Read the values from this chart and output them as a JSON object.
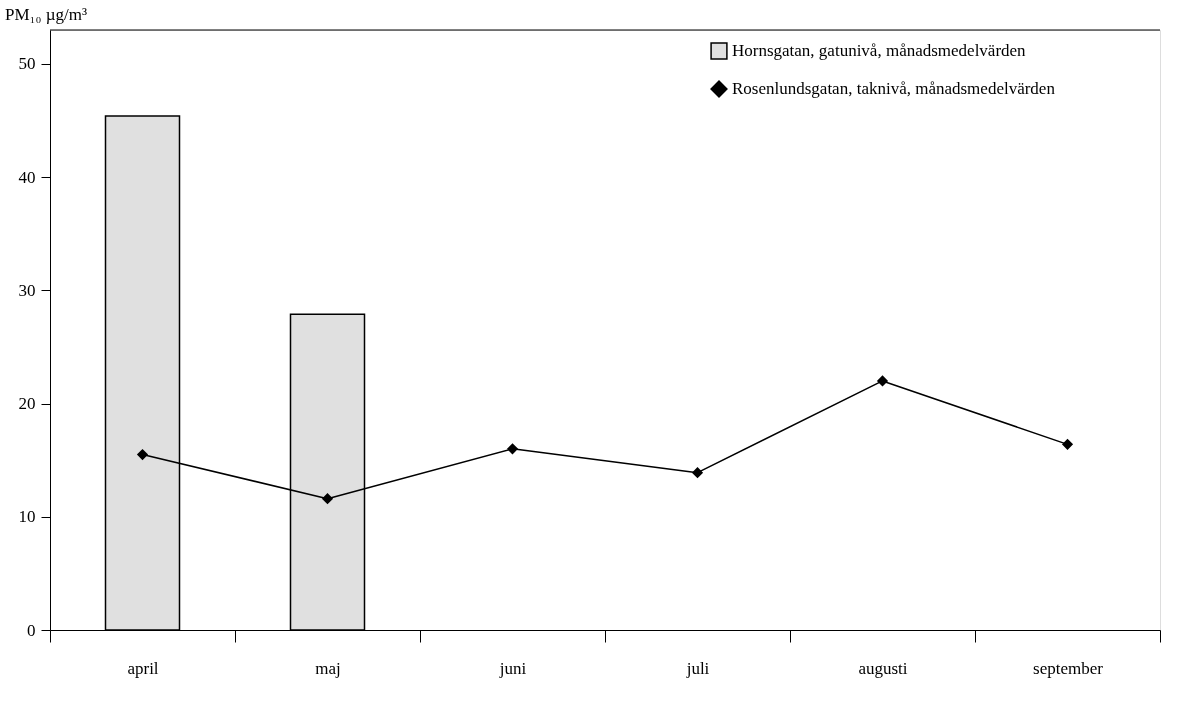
{
  "chart_data": {
    "type": "bar",
    "ylabel": "PM₁₀ µg/m³",
    "categories": [
      "april",
      "maj",
      "juni",
      "juli",
      "augusti",
      "september"
    ],
    "series": [
      {
        "name": "Hornsgatan, gatunivå, månadsmedelvärden",
        "color": "#e0e0e0",
        "values": [
          45.4,
          27.9,
          null,
          null,
          null,
          null
        ]
      },
      {
        "name": "Rosenlundsgatan, taknivå, månadsmedelvärden",
        "type": "line",
        "color": "#000000",
        "values": [
          15.5,
          11.6,
          16.0,
          13.9,
          22.0,
          16.4
        ]
      }
    ],
    "ylim": [
      0,
      53
    ],
    "yticks": [
      0,
      10,
      20,
      30,
      40,
      50
    ],
    "grid": false,
    "legend": "top right",
    "marker": "diamond",
    "line_style": "solid"
  }
}
